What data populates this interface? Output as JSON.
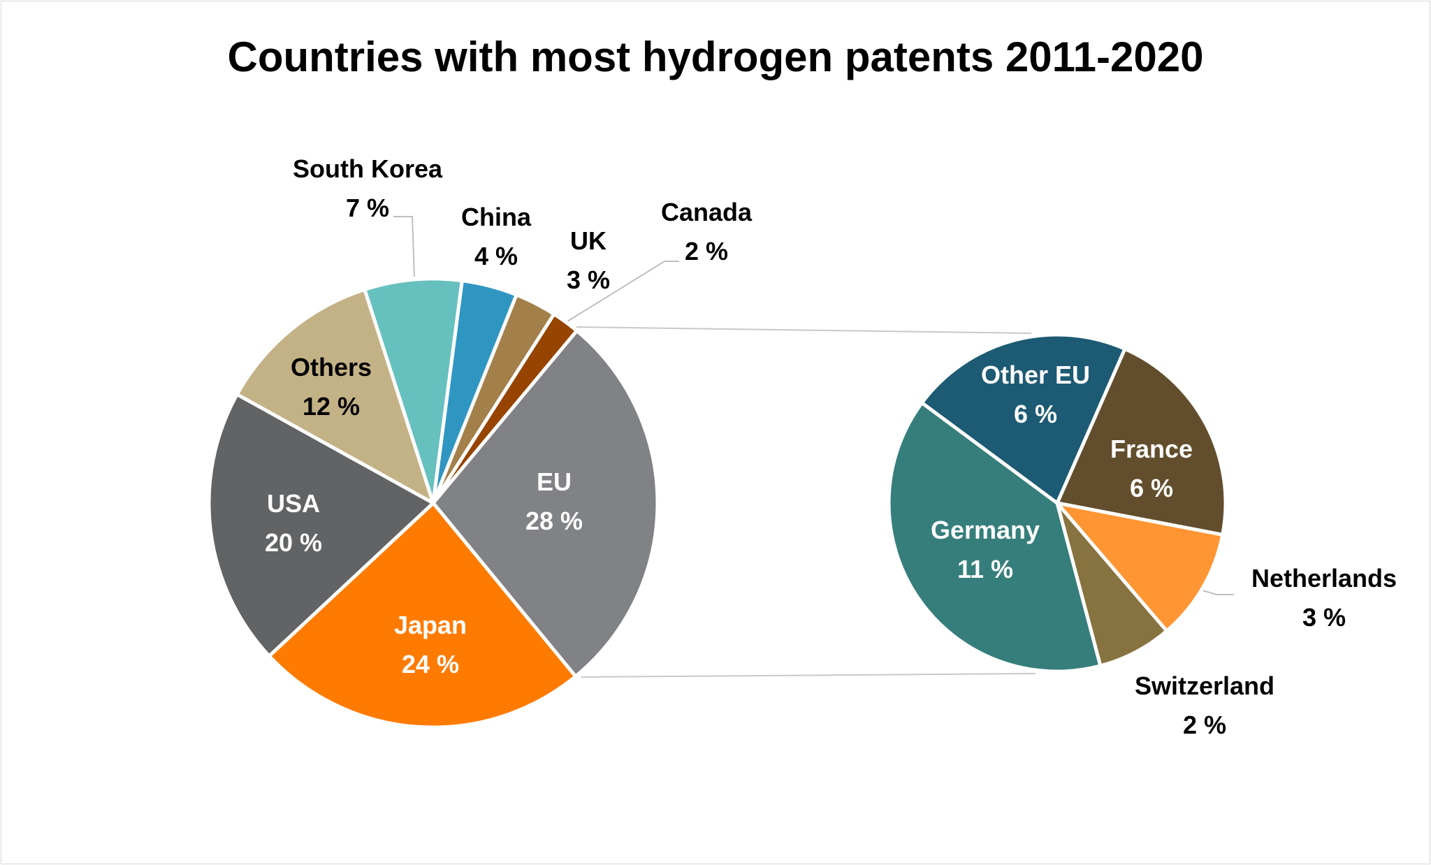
{
  "chart_data": [
    {
      "type": "pie",
      "title": "Countries with most hydrogen patents 2011-2020",
      "slices": [
        {
          "label": "EU",
          "value": 28,
          "display": "28 %",
          "color": "#818286",
          "label_color": "#ffffff"
        },
        {
          "label": "Japan",
          "value": 24,
          "display": "24 %",
          "color": "#FF7B00",
          "label_color": "#ffffff"
        },
        {
          "label": "USA",
          "value": 20,
          "display": "20 %",
          "color": "#626365",
          "label_color": "#ffffff"
        },
        {
          "label": "Others",
          "value": 12,
          "display": "12 %",
          "color": "#C4B287",
          "label_color": "#000000"
        },
        {
          "label": "South Korea",
          "value": 7,
          "display": "7 %",
          "color": "#66C0BE",
          "label_color": "#000000"
        },
        {
          "label": "China",
          "value": 4,
          "display": "4 %",
          "color": "#2F96C2",
          "label_color": "#000000"
        },
        {
          "label": "UK",
          "value": 3,
          "display": "3 %",
          "color": "#A38049",
          "label_color": "#000000"
        },
        {
          "label": "Canada",
          "value": 2,
          "display": "2 %",
          "color": "#964400",
          "label_color": "#000000"
        }
      ]
    },
    {
      "type": "pie",
      "expands": "EU",
      "slices": [
        {
          "label": "France",
          "value": 6,
          "display": "6 %",
          "color": "#624E2D",
          "label_color": "#ffffff"
        },
        {
          "label": "Netherlands",
          "value": 3,
          "display": "3 %",
          "color": "#FF9533",
          "label_color": "#000000"
        },
        {
          "label": "Switzerland",
          "value": 2,
          "display": "2 %",
          "color": "#877340",
          "label_color": "#000000"
        },
        {
          "label": "Germany",
          "value": 11,
          "display": "11 %",
          "color": "#357E7B",
          "label_color": "#ffffff"
        },
        {
          "label": "Other EU",
          "value": 6,
          "display": "6 %",
          "color": "#1D5A73",
          "label_color": "#ffffff"
        }
      ]
    }
  ]
}
